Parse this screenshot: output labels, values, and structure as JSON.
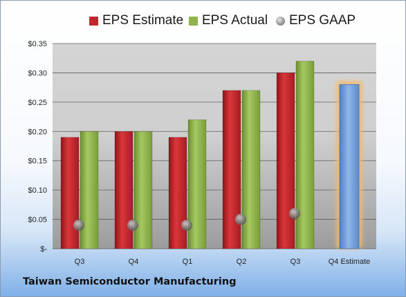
{
  "chart_data": {
    "type": "bar",
    "company": "Taiwan Semiconductor Manufacturing",
    "categories": [
      "Q3",
      "Q4",
      "Q1",
      "Q2",
      "Q3",
      "Q4 Estimate"
    ],
    "series": [
      {
        "name": "EPS Estimate",
        "color": "#c0262b",
        "values": [
          0.19,
          0.2,
          0.19,
          0.27,
          0.3,
          null
        ]
      },
      {
        "name": "EPS Actual",
        "color": "#8fb34a",
        "values": [
          0.2,
          0.2,
          0.22,
          0.27,
          0.32,
          null
        ]
      },
      {
        "name": "EPS GAAP",
        "color": "#9a9a9a",
        "marker": "sphere",
        "values": [
          0.04,
          0.04,
          0.04,
          0.05,
          0.06,
          null
        ]
      }
    ],
    "forecast": {
      "category": "Q4 Estimate",
      "value": 0.28,
      "color": "#6f9fda",
      "highlight": "#f5b86a"
    },
    "y_tick_labels": [
      "$-",
      "$0.05",
      "$0.10",
      "$0.15",
      "$0.20",
      "$0.25",
      "$0.30",
      "$0.35"
    ],
    "ylim": [
      0,
      0.35
    ],
    "grid": true,
    "legend_position": "top"
  }
}
